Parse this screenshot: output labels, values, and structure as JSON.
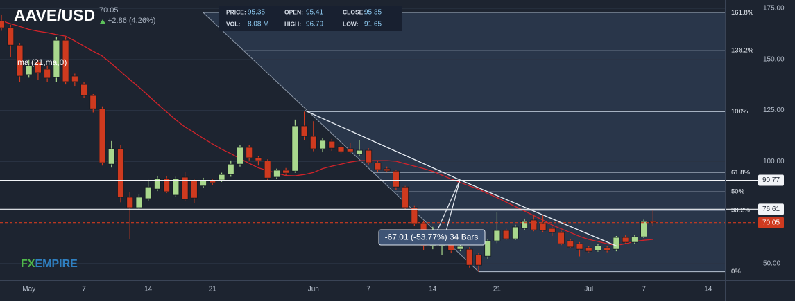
{
  "header": {
    "symbol": "AAVE/USD",
    "change": "+2.86 (4.26%)"
  },
  "info": [
    {
      "label": "PRICE:",
      "value": "95.35"
    },
    {
      "label": "OPEN:",
      "value": "95.41"
    },
    {
      "label": "CLOSE:",
      "value": "95.35"
    },
    {
      "label": "VOL:",
      "value": "8.08 M"
    },
    {
      "label": "HIGH:",
      "value": "96.79"
    },
    {
      "label": "LOW:",
      "value": "91.65"
    }
  ],
  "watermark": [
    "FX",
    "EMPIRE"
  ],
  "chart_data": {
    "type": "candlestick",
    "categories": [
      null,
      null,
      null,
      "May",
      null,
      null,
      null,
      null,
      null,
      "7",
      null,
      null,
      null,
      null,
      null,
      null,
      "14",
      null,
      null,
      null,
      null,
      null,
      null,
      "21",
      null,
      null,
      null,
      null,
      null,
      null,
      null,
      null,
      null,
      null,
      "Jun",
      null,
      null,
      null,
      null,
      null,
      "7",
      null,
      null,
      null,
      null,
      null,
      null,
      "14",
      null,
      null,
      null,
      null,
      null,
      null,
      "21",
      null,
      null,
      null,
      null,
      null,
      null,
      null,
      null,
      null,
      "Jul",
      null,
      null,
      null,
      null,
      null,
      "7",
      null,
      null,
      null,
      null,
      null,
      null,
      "14",
      null
    ],
    "open": [
      168.9,
      165.5,
      157,
      142.5,
      148.6,
      145.2,
      141.1,
      159.4,
      141.8,
      137.7,
      132.3,
      125.8,
      98.7,
      106.2,
      82.5,
      77.4,
      81.8,
      86.5,
      91.6,
      83.5,
      92.3,
      90.9,
      88,
      90.9,
      90.9,
      93.6,
      98.7,
      106.9,
      101.8,
      100.4,
      92.3,
      95.7,
      95.3,
      117.4,
      112.3,
      106.2,
      109.9,
      107.2,
      106.2,
      103.5,
      105.5,
      99.4,
      96.4,
      95.3,
      87.5,
      77.4,
      69.9,
      58.7,
      58.7,
      63.8,
      57,
      57,
      54.3,
      53.6,
      61.1,
      66.2,
      62.1,
      67.2,
      71.3,
      69.9,
      67.2,
      65.2,
      61.1,
      59.7,
      57.7,
      56.4,
      57.7,
      57,
      62.8,
      60.4,
      63.1,
      70.6,
      null,
      null,
      null,
      null,
      null,
      null,
      null
    ],
    "high": [
      172,
      167,
      158,
      150,
      150,
      147,
      161,
      161,
      143,
      139,
      133,
      127,
      110,
      108,
      85,
      84,
      91,
      93,
      93,
      92.5,
      95,
      91.5,
      92,
      91.5,
      94.5,
      100.5,
      108,
      108,
      102.5,
      101,
      96.5,
      96.8,
      120.5,
      124.4,
      119.7,
      111.5,
      111,
      108,
      109,
      110.5,
      106.5,
      100.5,
      97.5,
      96,
      88,
      78.5,
      71,
      68,
      65,
      66,
      60,
      58,
      55,
      62,
      75,
      67,
      69,
      72,
      74,
      73.5,
      68,
      66,
      62,
      60.5,
      58.5,
      59.5,
      58.5,
      63.5,
      63.8,
      64,
      71.5,
      76,
      null,
      null,
      null,
      null,
      null,
      null,
      null
    ],
    "low": [
      164,
      151,
      139,
      141,
      140,
      139,
      139,
      137.7,
      136.7,
      131,
      124,
      98,
      97,
      80,
      62.1,
      76.5,
      80.5,
      85.5,
      84.5,
      82.8,
      80.8,
      79.5,
      87,
      88.5,
      90,
      92.5,
      97.5,
      100.5,
      98,
      90.5,
      91.5,
      93.2,
      94.5,
      110.5,
      105,
      104.5,
      105.2,
      104,
      104,
      102.8,
      98.5,
      95,
      94.8,
      86,
      76.5,
      68.5,
      56.5,
      57,
      54,
      55,
      56,
      48,
      46,
      52,
      60,
      61.5,
      61.5,
      66.5,
      65.8,
      65.5,
      63.5,
      59,
      57.5,
      53.5,
      55.5,
      55.8,
      55.5,
      56,
      59.8,
      59.5,
      62.5,
      68.5,
      null,
      null,
      null,
      null,
      null,
      null,
      null
    ],
    "close": [
      165.5,
      157,
      141.8,
      146.9,
      143.5,
      140.8,
      159.4,
      139.1,
      139.1,
      132.3,
      125.8,
      99.4,
      106.2,
      82.5,
      77.4,
      82.5,
      87.5,
      91.6,
      85.2,
      91.6,
      81.4,
      82.1,
      90.9,
      89.6,
      93.6,
      98.7,
      106.9,
      101.8,
      100.4,
      91.9,
      95.7,
      94.3,
      117.4,
      112.3,
      106.2,
      110.3,
      106.5,
      104.8,
      104.8,
      105.5,
      99.4,
      96,
      95.4,
      87.5,
      77.4,
      69.6,
      58.7,
      65.5,
      63.8,
      56.4,
      58.4,
      49.2,
      49.2,
      61.1,
      66.2,
      62.1,
      67.9,
      70.6,
      66.5,
      66.2,
      65.2,
      59.7,
      58.1,
      57,
      56,
      58.7,
      56.4,
      62.8,
      60.4,
      63.1,
      70.6,
      70.05,
      null,
      null,
      null,
      null,
      null,
      null,
      null
    ],
    "up_color": "#a9d88d",
    "down_color": "#cf3a1f",
    "ma": {
      "name": "ma (21,ma,0)",
      "color": "#d2232a",
      "values": [
        168.9,
        167.5,
        166.1,
        164.7,
        163.8,
        163.1,
        162.2,
        161.4,
        159.1,
        156.5,
        154.0,
        151.6,
        147.9,
        144.0,
        140.1,
        136.3,
        132.3,
        128.2,
        124.3,
        120.4,
        116.9,
        114.2,
        111.3,
        108.6,
        106.0,
        103.8,
        101.4,
        99.1,
        96.9,
        95.5,
        94.3,
        93.1,
        93.0,
        93.6,
        94.6,
        96.5,
        97.7,
        98.7,
        99.7,
        100.4,
        100.4,
        100.4,
        100.4,
        100.1,
        98.9,
        97.7,
        96.5,
        95.2,
        93.3,
        91.4,
        89.7,
        88.0,
        86.4,
        84.3,
        82.3,
        80.1,
        77.9,
        75.7,
        73.5,
        71.3,
        68.9,
        67.0,
        65.2,
        63.3,
        61.8,
        60.8,
        59.7,
        58.9,
        59.7,
        60.8,
        61.4,
        61.8,
        null,
        null,
        null,
        null,
        null,
        null,
        null
      ]
    },
    "ylim": [
      41.8,
      179.1
    ],
    "yticks": [
      {
        "value": 50,
        "label": "50.00"
      },
      {
        "value": 100,
        "label": "100.00"
      },
      {
        "value": 125,
        "label": "125.00"
      },
      {
        "value": 150,
        "label": "150.00"
      },
      {
        "value": 175,
        "label": "175.00"
      }
    ],
    "grid": true,
    "fib": {
      "color": "#b9c4d4",
      "levels": [
        {
          "value": 172.9,
          "label": "161.8%"
        },
        {
          "value": 154.3,
          "label": "138.2%"
        },
        {
          "value": 124.4,
          "label": "100%"
        },
        {
          "value": 94.5,
          "label": "61.8%"
        },
        {
          "value": 85.2,
          "label": "50%"
        },
        {
          "value": 76.0,
          "label": "38.2%"
        },
        {
          "value": 46.0,
          "label": "0%"
        }
      ]
    },
    "price_lines": [
      90.77,
      76.61
    ],
    "last_price": 70.05,
    "annotation": "-67.01 (-53.77%) 34 Bars"
  }
}
